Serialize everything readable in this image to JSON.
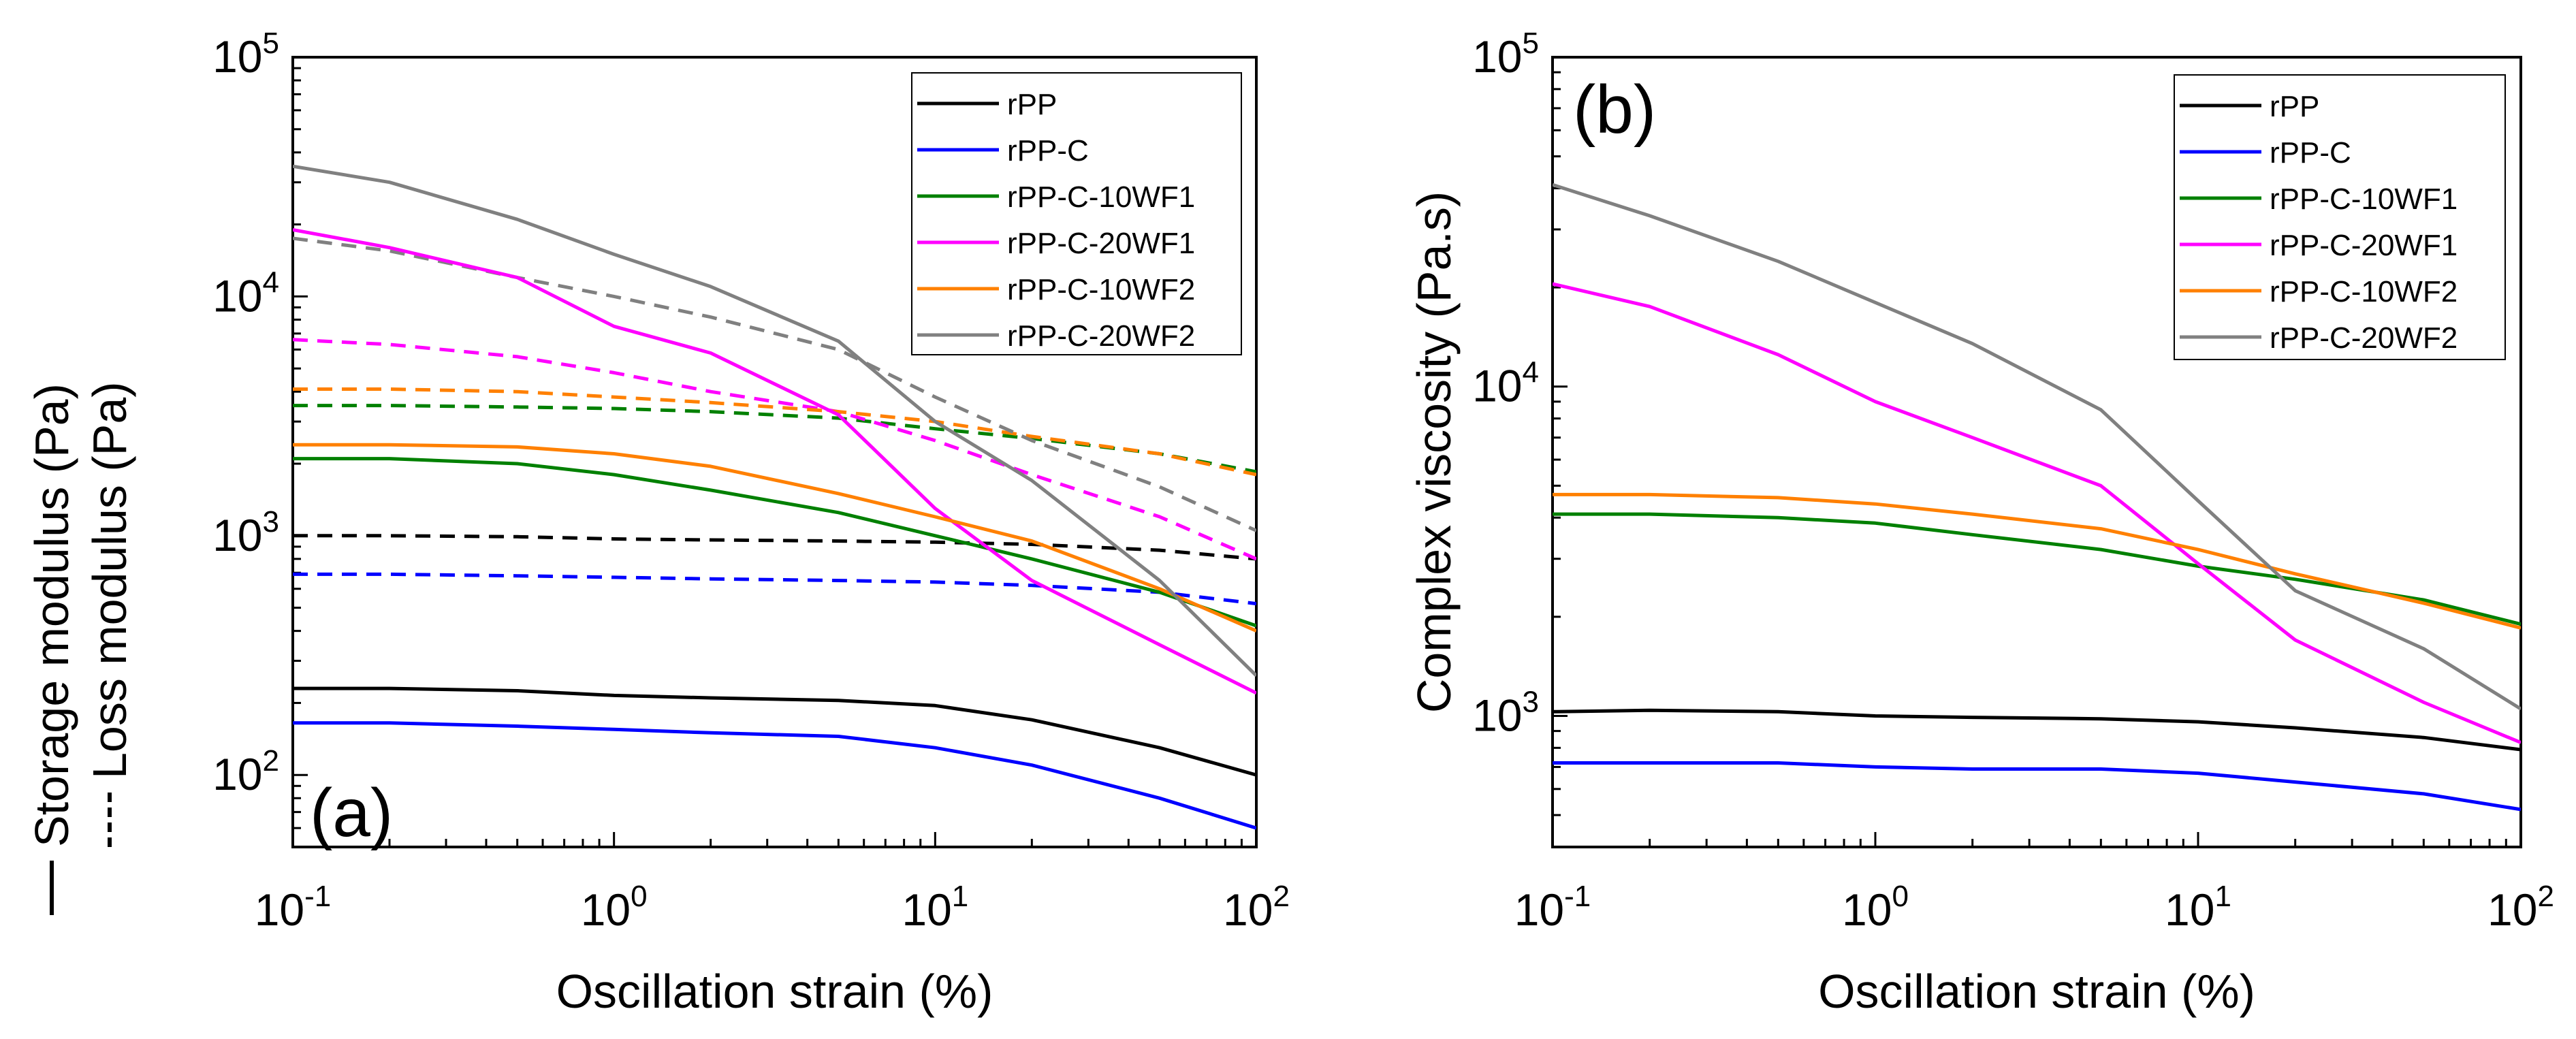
{
  "chart_data": [
    {
      "type": "line",
      "panel_label": "(a)",
      "xlabel": "Oscillation strain (%)",
      "ylabel_solid": "Storage modulus (Pa)",
      "ylabel_dashed": "Loss modulus (Pa)",
      "xscale": "log",
      "yscale": "log",
      "xlim": [
        0.1,
        100
      ],
      "ylim": [
        50,
        100000
      ],
      "xticks": [
        {
          "base": "10",
          "exp": "-1",
          "v": 0.1
        },
        {
          "base": "10",
          "exp": "0",
          "v": 1
        },
        {
          "base": "10",
          "exp": "1",
          "v": 10
        },
        {
          "base": "10",
          "exp": "2",
          "v": 100
        }
      ],
      "yticks": [
        {
          "base": "10",
          "exp": "2",
          "v": 100
        },
        {
          "base": "10",
          "exp": "3",
          "v": 1000
        },
        {
          "base": "10",
          "exp": "4",
          "v": 10000
        },
        {
          "base": "10",
          "exp": "5",
          "v": 100000
        }
      ],
      "legend_position": "top-right",
      "x": [
        0.1,
        0.2,
        0.5,
        1,
        2,
        5,
        10,
        20,
        50,
        100
      ],
      "series": [
        {
          "name": "rPP",
          "color": "#000000",
          "storage": [
            230,
            230,
            225,
            215,
            210,
            205,
            195,
            170,
            130,
            100
          ],
          "loss": [
            1000,
            1000,
            990,
            970,
            960,
            950,
            940,
            920,
            870,
            800
          ]
        },
        {
          "name": "rPP-C",
          "color": "#0000ff",
          "storage": [
            165,
            165,
            160,
            155,
            150,
            145,
            130,
            110,
            80,
            60
          ],
          "loss": [
            690,
            690,
            680,
            670,
            660,
            650,
            640,
            620,
            580,
            520
          ]
        },
        {
          "name": "rPP-C-10WF1",
          "color": "#008000",
          "storage": [
            2100,
            2100,
            2000,
            1800,
            1550,
            1250,
            1000,
            800,
            580,
            420
          ],
          "loss": [
            3500,
            3500,
            3450,
            3400,
            3300,
            3100,
            2800,
            2550,
            2200,
            1850
          ]
        },
        {
          "name": "rPP-C-20WF1",
          "color": "#ff00ff",
          "storage": [
            19000,
            16000,
            12000,
            7500,
            5800,
            3200,
            1300,
            650,
            350,
            220
          ],
          "loss": [
            6600,
            6300,
            5600,
            4800,
            4000,
            3300,
            2500,
            1800,
            1200,
            800
          ]
        },
        {
          "name": "rPP-C-10WF2",
          "color": "#ff8000",
          "storage": [
            2400,
            2400,
            2350,
            2200,
            1950,
            1500,
            1200,
            950,
            600,
            400
          ],
          "loss": [
            4100,
            4100,
            4000,
            3800,
            3600,
            3300,
            3000,
            2600,
            2200,
            1800
          ]
        },
        {
          "name": "rPP-C-20WF2",
          "color": "#808080",
          "storage": [
            35000,
            30000,
            21000,
            15000,
            11000,
            6500,
            3000,
            1700,
            650,
            260
          ],
          "loss": [
            17500,
            15500,
            12000,
            10000,
            8200,
            6000,
            3800,
            2500,
            1600,
            1050
          ]
        }
      ]
    },
    {
      "type": "line",
      "panel_label": "(b)",
      "xlabel": "Oscillation strain (%)",
      "ylabel": "Complex viscosity (Pa.s)",
      "xscale": "log",
      "yscale": "log",
      "xlim": [
        0.1,
        100
      ],
      "ylim": [
        400,
        100000
      ],
      "xticks": [
        {
          "base": "10",
          "exp": "-1",
          "v": 0.1
        },
        {
          "base": "10",
          "exp": "0",
          "v": 1
        },
        {
          "base": "10",
          "exp": "1",
          "v": 10
        },
        {
          "base": "10",
          "exp": "2",
          "v": 100
        }
      ],
      "yticks": [
        {
          "base": "10",
          "exp": "3",
          "v": 1000
        },
        {
          "base": "10",
          "exp": "4",
          "v": 10000
        },
        {
          "base": "10",
          "exp": "5",
          "v": 100000
        }
      ],
      "legend_position": "top-right",
      "x": [
        0.1,
        0.2,
        0.5,
        1,
        2,
        5,
        10,
        20,
        50,
        100
      ],
      "series": [
        {
          "name": "rPP",
          "color": "#000000",
          "viscosity": [
            1030,
            1040,
            1030,
            1000,
            990,
            980,
            960,
            920,
            860,
            790
          ]
        },
        {
          "name": "rPP-C",
          "color": "#0000ff",
          "viscosity": [
            720,
            720,
            720,
            700,
            690,
            690,
            670,
            630,
            580,
            520
          ]
        },
        {
          "name": "rPP-C-10WF1",
          "color": "#008000",
          "viscosity": [
            4100,
            4100,
            4000,
            3850,
            3550,
            3200,
            2850,
            2600,
            2250,
            1900
          ]
        },
        {
          "name": "rPP-C-20WF1",
          "color": "#ff00ff",
          "viscosity": [
            20500,
            17500,
            12500,
            9000,
            7000,
            5000,
            2900,
            1700,
            1100,
            830
          ]
        },
        {
          "name": "rPP-C-10WF2",
          "color": "#ff8000",
          "viscosity": [
            4700,
            4700,
            4600,
            4400,
            4100,
            3700,
            3200,
            2700,
            2200,
            1850
          ]
        },
        {
          "name": "rPP-C-20WF2",
          "color": "#808080",
          "viscosity": [
            41000,
            33000,
            24000,
            18000,
            13500,
            8500,
            4500,
            2400,
            1600,
            1050
          ]
        }
      ]
    }
  ]
}
